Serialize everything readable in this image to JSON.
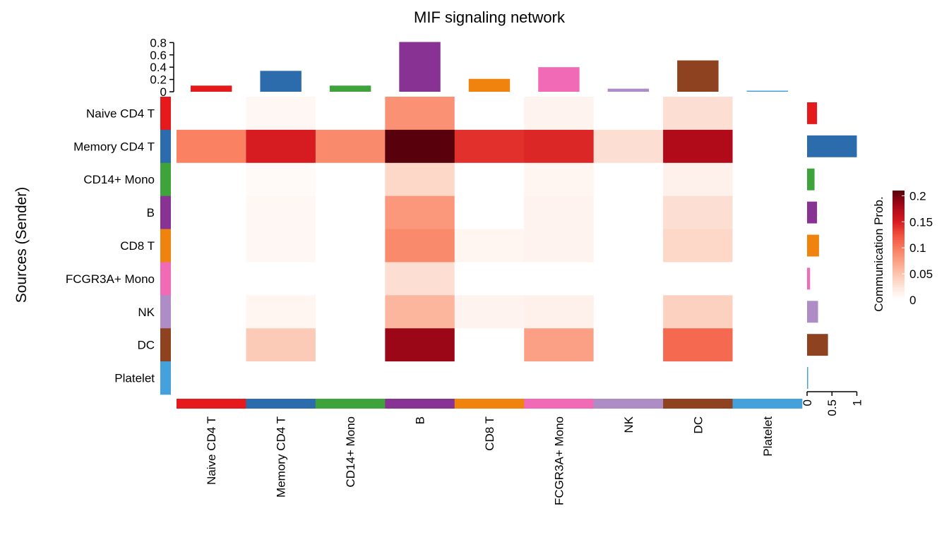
{
  "chart_data": {
    "type": "heatmap",
    "title": "MIF signaling network",
    "ylabel": "Sources (Sender)",
    "rows": [
      "Naive CD4 T",
      "Memory CD4 T",
      "CD14+ Mono",
      "B",
      "CD8 T",
      "FCGR3A+ Mono",
      "NK",
      "DC",
      "Platelet"
    ],
    "columns": [
      "Naive CD4 T",
      "Memory CD4 T",
      "CD14+ Mono",
      "B",
      "CD8 T",
      "FCGR3A+ Mono",
      "NK",
      "DC",
      "Platelet"
    ],
    "values": [
      [
        0,
        0.008,
        0,
        0.085,
        0,
        0.012,
        0,
        0.03,
        0
      ],
      [
        0.095,
        0.15,
        0.09,
        0.21,
        0.14,
        0.145,
        0.03,
        0.175,
        0
      ],
      [
        0,
        0.005,
        0,
        0.035,
        0,
        0.01,
        0,
        0.015,
        0
      ],
      [
        0,
        0.008,
        0,
        0.08,
        0,
        0.012,
        0,
        0.03,
        0
      ],
      [
        0,
        0.008,
        0,
        0.09,
        0.01,
        0.012,
        0,
        0.035,
        0
      ],
      [
        0,
        0,
        0,
        0.03,
        0,
        0,
        0,
        0,
        0
      ],
      [
        0,
        0.01,
        0,
        0.06,
        0.012,
        0.015,
        0,
        0.04,
        0
      ],
      [
        0,
        0.045,
        0,
        0.185,
        0,
        0.075,
        0,
        0.11,
        0
      ],
      [
        0,
        0,
        0,
        0,
        0,
        0,
        0,
        0,
        0
      ]
    ],
    "group_colors": [
      "#E41A1C",
      "#2C6CAC",
      "#3EA33A",
      "#883294",
      "#F0820E",
      "#F06AB5",
      "#AE8CC6",
      "#8E4220",
      "#44A1DC"
    ],
    "top_bar": {
      "values": [
        0.1,
        0.34,
        0.1,
        0.81,
        0.21,
        0.4,
        0.05,
        0.51,
        0.01
      ],
      "ticks": [
        "0",
        "0.2",
        "0.4",
        "0.6",
        "0.8"
      ],
      "tick_values": [
        0,
        0.2,
        0.4,
        0.6,
        0.8
      ],
      "ylim": [
        0,
        0.85
      ]
    },
    "right_bar": {
      "values": [
        0.2,
        1.0,
        0.15,
        0.2,
        0.24,
        0.06,
        0.22,
        0.42,
        0.01
      ],
      "ticks": [
        "0",
        "0.5",
        "1"
      ],
      "tick_values": [
        0,
        0.5,
        1
      ],
      "xlim": [
        0,
        1.05
      ]
    },
    "legend": {
      "title": "Communication Prob.",
      "ticks": [
        "0.2",
        "0.15",
        "0.1",
        "0.05",
        "0"
      ],
      "tick_values": [
        0.2,
        0.15,
        0.1,
        0.05,
        0
      ],
      "range": [
        0,
        0.21
      ],
      "position": "right",
      "colormap": "Reds"
    },
    "grid": false
  }
}
